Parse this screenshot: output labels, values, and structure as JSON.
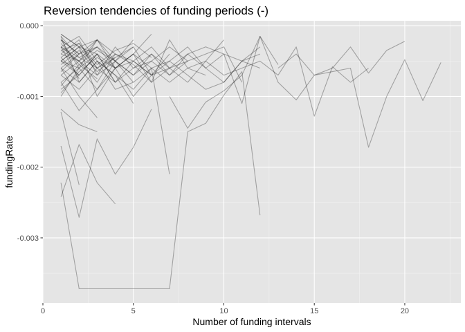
{
  "chart_data": {
    "type": "line",
    "title": "Reversion tendencies of funding periods (-)",
    "xlabel": "Number of funding intervals",
    "ylabel": "fundingRate",
    "xlim": [
      0,
      23.1
    ],
    "ylim": [
      -0.00392,
      7e-05
    ],
    "x_ticks": [
      0,
      5,
      10,
      15,
      20
    ],
    "x_tick_labels": [
      "0",
      "5",
      "10",
      "15",
      "20"
    ],
    "y_ticks": [
      0.0,
      -0.001,
      -0.002,
      -0.003
    ],
    "y_tick_labels": [
      "0.000",
      "-0.001",
      "-0.002",
      "-0.003"
    ],
    "grid": true,
    "legend": "none",
    "style": {
      "panel_background": "#e5e5e5",
      "grid_major": "#ffffff",
      "grid_minor": "#f2f2f2",
      "line_color": "#000000",
      "line_opacity": 0.3
    },
    "series": [
      {
        "x": [
          1,
          2,
          7
        ],
        "values": [
          -0.00222,
          -0.00372,
          -0.00372
        ]
      },
      {
        "x": [
          1,
          2,
          3,
          4
        ],
        "values": [
          -0.00242,
          -0.00168,
          -0.00222,
          -0.00252
        ]
      },
      {
        "x": [
          1,
          2,
          3,
          4,
          5,
          6
        ],
        "values": [
          -0.0017,
          -0.00271,
          -0.0016,
          -0.0021,
          -0.00172,
          -0.00118
        ]
      },
      {
        "x": [
          1,
          2
        ],
        "values": [
          -0.00122,
          -0.00225
        ]
      },
      {
        "x": [
          1,
          2,
          3
        ],
        "values": [
          -0.00118,
          -0.0014,
          -0.0015
        ]
      },
      {
        "x": [
          1,
          2,
          3,
          4,
          5,
          6,
          7,
          8,
          9,
          10,
          11,
          12,
          13,
          14,
          15,
          16,
          17,
          18
        ],
        "values": [
          -0.0002,
          -0.0004,
          -0.0003,
          -0.0006,
          -0.0005,
          -0.0007,
          -0.0006,
          -0.0008,
          -0.0005,
          -0.0007,
          -0.0006,
          -0.0005,
          -0.0007,
          -0.0003,
          -0.00128,
          -0.00058,
          -0.0008,
          -0.0006
        ]
      },
      {
        "x": [
          7,
          8,
          9,
          10,
          11,
          12
        ],
        "values": [
          -0.00372,
          -0.0015,
          -0.00138,
          -0.00098,
          -0.00065,
          -0.00268
        ]
      },
      {
        "x": [
          7,
          8,
          9,
          10,
          11,
          12,
          13,
          14,
          15,
          16,
          17,
          18,
          19,
          20
        ],
        "values": [
          -0.001,
          -0.00145,
          -0.00108,
          -0.00092,
          -0.0007,
          -0.00015,
          -0.0008,
          -0.00105,
          -0.0007,
          -0.0006,
          -0.0003,
          -0.00067,
          -0.00035,
          -0.00022
        ]
      },
      {
        "x": [
          13,
          14,
          15,
          16,
          17,
          18,
          19,
          20,
          21,
          22
        ],
        "values": [
          -0.0006,
          -0.0004,
          -0.0007,
          -0.00065,
          -0.0006,
          -0.00172,
          -0.001,
          -0.00048,
          -0.00106,
          -0.00052
        ]
      },
      {
        "x": [
          1,
          2,
          3,
          4,
          5,
          6,
          7
        ],
        "values": [
          -0.00015,
          -0.0008,
          -0.0005,
          -0.0009,
          -0.0008,
          -0.0006,
          -0.0021
        ]
      },
      {
        "x": [
          1,
          2,
          3,
          4,
          5,
          6
        ],
        "values": [
          -0.00012,
          -0.0003,
          -0.001,
          -0.0006,
          -0.0004,
          -0.00012
        ]
      },
      {
        "x": [
          1,
          2,
          3,
          4,
          5
        ],
        "values": [
          -0.0003,
          -0.00015,
          -0.0005,
          -0.0007,
          -0.0011
        ]
      },
      {
        "x": [
          1,
          2,
          3,
          4
        ],
        "values": [
          -0.0005,
          -0.0006,
          -0.0002,
          -0.0004
        ]
      },
      {
        "x": [
          1,
          2,
          3,
          4,
          5,
          6,
          7,
          8,
          9,
          10,
          11,
          12,
          13
        ],
        "values": [
          -0.0004,
          -0.0002,
          -0.0007,
          -0.0005,
          -0.0003,
          -0.0007,
          -0.0005,
          -0.0003,
          -0.0006,
          -0.0004,
          -0.0011,
          -0.00015,
          -0.00055
        ]
      },
      {
        "x": [
          1,
          2,
          3
        ],
        "values": [
          -0.0006,
          -0.001,
          -0.0013
        ]
      },
      {
        "x": [
          1,
          2
        ],
        "values": [
          -0.0002,
          -0.0004
        ]
      },
      {
        "x": [
          1,
          2,
          3,
          4,
          5,
          6
        ],
        "values": [
          -0.0008,
          -0.0012,
          -0.0009,
          -0.0006,
          -0.001,
          -0.0007
        ]
      },
      {
        "x": [
          1,
          2,
          3,
          4,
          5,
          6,
          7,
          8,
          9,
          10
        ],
        "values": [
          -0.0003,
          -0.0005,
          -0.0002,
          -0.0006,
          -0.0004,
          -0.0008,
          -0.0002,
          -0.0006,
          -0.0005,
          -0.0002
        ]
      },
      {
        "x": [
          1,
          2,
          3
        ],
        "values": [
          -0.0009,
          -0.0007,
          -0.0004
        ]
      },
      {
        "x": [
          1,
          2,
          3,
          4,
          5,
          6,
          7,
          8,
          9,
          10,
          11,
          12
        ],
        "values": [
          -0.0005,
          -0.0003,
          -0.0004,
          -0.0008,
          -0.0006,
          -0.0005,
          -0.0007,
          -0.0004,
          -0.0006,
          -0.0008,
          -0.0005,
          -0.0006
        ]
      },
      {
        "x": [
          1,
          2,
          3,
          4,
          5
        ],
        "values": [
          -0.00025,
          -0.00055,
          -0.00035,
          -0.0005,
          -0.0002
        ]
      },
      {
        "x": [
          1,
          2,
          3,
          4,
          5,
          6,
          7,
          8
        ],
        "values": [
          -0.0007,
          -0.0005,
          -0.0008,
          -0.0004,
          -0.0005,
          -0.0003,
          -0.0006,
          -0.0005
        ]
      },
      {
        "x": [
          1,
          2
        ],
        "values": [
          -0.00045,
          -0.0007
        ]
      },
      {
        "x": [
          1,
          2,
          3,
          4
        ],
        "values": [
          -0.00035,
          -0.00025,
          -0.0006,
          -0.00045
        ]
      },
      {
        "x": [
          1,
          2,
          3,
          4,
          5,
          6,
          7,
          8,
          9
        ],
        "values": [
          -0.0006,
          -0.0008,
          -0.0005,
          -0.0007,
          -0.0009,
          -0.0006,
          -0.0008,
          -0.0006,
          -0.0007
        ]
      },
      {
        "x": [
          1,
          2,
          3,
          4,
          5,
          6,
          7,
          8,
          9,
          10,
          11
        ],
        "values": [
          -0.0004,
          -0.0005,
          -0.0007,
          -0.0003,
          -0.0006,
          -0.0004,
          -0.0007,
          -0.0005,
          -0.0004,
          -0.0003,
          -0.0008
        ]
      },
      {
        "x": [
          1,
          2,
          3
        ],
        "values": [
          -0.00015,
          -0.00045,
          -0.0003
        ]
      },
      {
        "x": [
          1,
          2,
          3,
          4,
          5,
          6,
          7
        ],
        "values": [
          -0.0008,
          -0.0006,
          -0.0009,
          -0.0005,
          -0.0007,
          -0.0004,
          -0.0006
        ]
      },
      {
        "x": [
          1,
          2
        ],
        "values": [
          -0.001,
          -0.0006
        ]
      },
      {
        "x": [
          1,
          2,
          3,
          4,
          5
        ],
        "values": [
          -0.00055,
          -0.00035,
          -0.00065,
          -0.00045,
          -0.0003
        ]
      },
      {
        "x": [
          1,
          2,
          3,
          4,
          5,
          6,
          7,
          8,
          9,
          10,
          11,
          12
        ],
        "values": [
          -0.0003,
          -0.00045,
          -0.0006,
          -0.0004,
          -0.00055,
          -0.0008,
          -0.0006,
          -0.0004,
          -0.0003,
          -0.0004,
          -0.0005,
          -0.0004
        ]
      },
      {
        "x": [
          1,
          2,
          3
        ],
        "values": [
          -0.0007,
          -0.0009,
          -0.0006
        ]
      },
      {
        "x": [
          1,
          2,
          3,
          4
        ],
        "values": [
          -0.0002,
          -0.0006,
          -0.0004,
          -0.0008
        ]
      },
      {
        "x": [
          1,
          2,
          3,
          4,
          5,
          6,
          7,
          8,
          9,
          10,
          11,
          12
        ],
        "values": [
          -0.0005,
          -0.0007,
          -0.0004,
          -0.0006,
          -0.0004,
          -0.0006,
          -0.0005,
          -0.0007,
          -0.0009,
          -0.0008,
          -0.0005,
          -0.0003
        ]
      },
      {
        "x": [
          1,
          2
        ],
        "values": [
          -0.00065,
          -0.0004
        ]
      },
      {
        "x": [
          1,
          2,
          3,
          4,
          5,
          6
        ],
        "values": [
          -0.00045,
          -0.00025,
          -0.00055,
          -0.00035,
          -0.00025,
          -0.00045
        ]
      },
      {
        "x": [
          1,
          2,
          3
        ],
        "values": [
          -0.00085,
          -0.00055,
          -0.00075
        ]
      },
      {
        "x": [
          1,
          2,
          3,
          4,
          5,
          6,
          7,
          8
        ],
        "values": [
          -0.00035,
          -0.0005,
          -0.0003,
          -0.0005,
          -0.0007,
          -0.0005,
          -0.0003,
          -0.0005
        ]
      },
      {
        "x": [
          1,
          2,
          3,
          4
        ],
        "values": [
          -0.00095,
          -0.00065,
          -0.00045,
          -0.0006
        ]
      },
      {
        "x": [
          1,
          2
        ],
        "values": [
          -0.0003,
          -0.00075
        ]
      },
      {
        "x": [
          1,
          2,
          3,
          4,
          5
        ],
        "values": [
          -0.0006,
          -0.0004,
          -0.0002,
          -0.0005,
          -0.0008
        ]
      },
      {
        "x": [
          1,
          2,
          3
        ],
        "values": [
          -0.00012,
          -0.0003,
          -0.0002
        ]
      },
      {
        "x": [
          1,
          2,
          3,
          4,
          5,
          6,
          7
        ],
        "values": [
          -0.0005,
          -0.0003,
          -0.0006,
          -0.0008,
          -0.0005,
          -0.0007,
          -0.0004
        ]
      }
    ]
  }
}
